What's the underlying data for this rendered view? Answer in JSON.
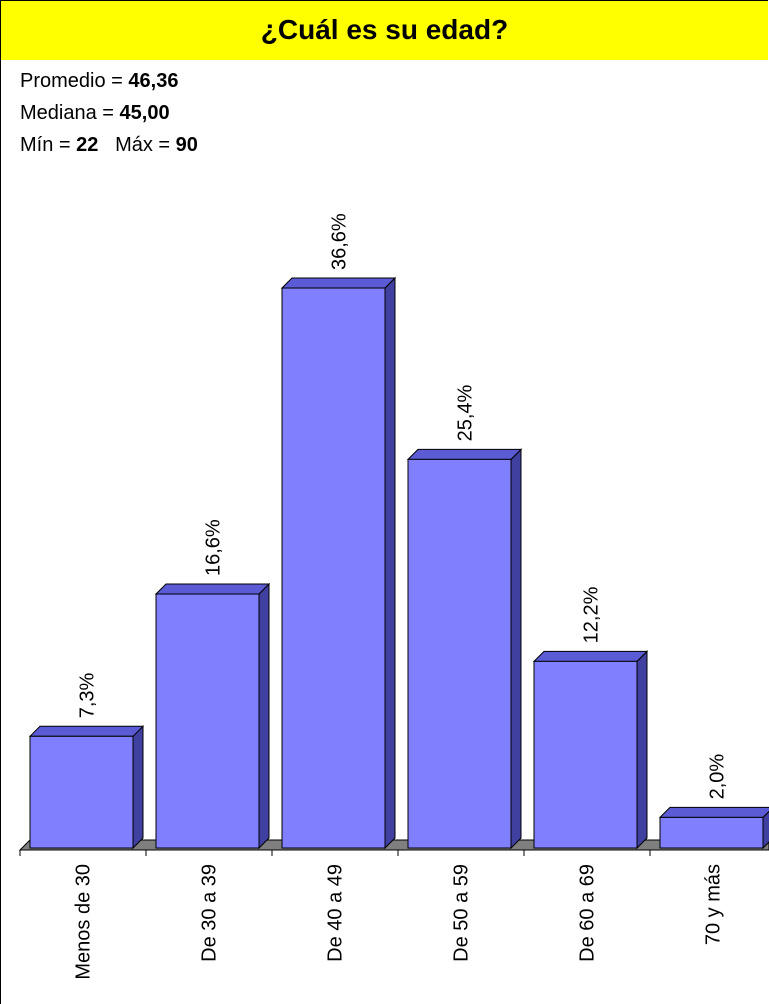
{
  "title": "¿Cuál es su edad?",
  "stats": {
    "promedio_label": "Promedio = ",
    "promedio_value": "46,36",
    "mediana_label": "Mediana = ",
    "mediana_value": "45,00",
    "min_label": "Mín = ",
    "min_value": "22",
    "max_label": "Máx = ",
    "max_value": "90"
  },
  "colors": {
    "bar_front": "#8080ff",
    "bar_top": "#5b5bd6",
    "bar_side": "#4040a0",
    "floor": "#7f7f7f",
    "title_bg": "#ffff00"
  },
  "chart_data": {
    "type": "bar",
    "title": "¿Cuál es su edad?",
    "categories": [
      "Menos de 30",
      "De 30 a 39",
      "De 40 a 49",
      "De 50 a 59",
      "De 60 a 69",
      "70 y más"
    ],
    "values": [
      7.3,
      16.6,
      36.6,
      25.4,
      12.2,
      2.0
    ],
    "value_labels": [
      "7,3%",
      "16,6%",
      "36,6%",
      "25,4%",
      "12,2%",
      "2,0%"
    ],
    "ylim": [
      0,
      40
    ],
    "grid": false,
    "legend": "none"
  }
}
